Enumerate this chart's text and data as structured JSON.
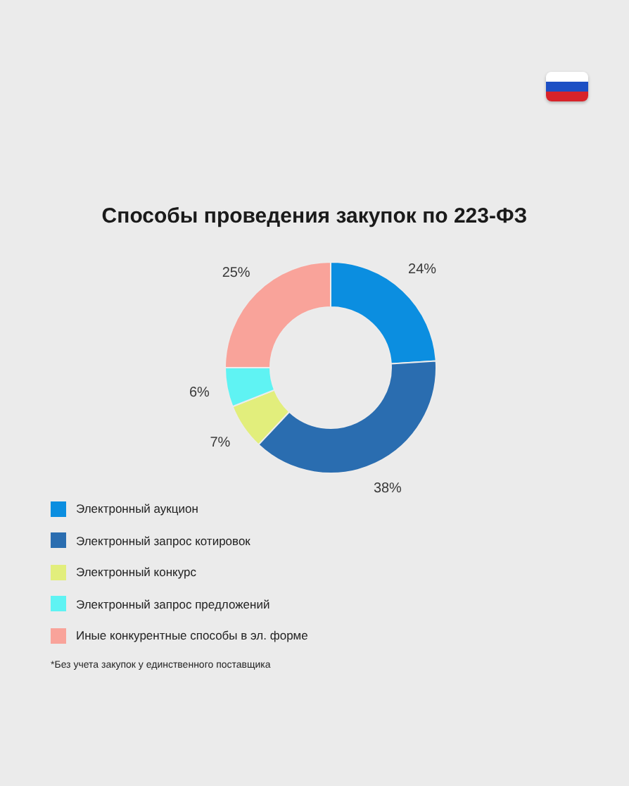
{
  "chart_data": {
    "type": "donut",
    "title": "Способы проведения закупок по 223-ФЗ",
    "categories": [
      "Электронный аукцион",
      "Электронный запрос котировок",
      "Электронный конкурс",
      "Электронный запрос предложений",
      "Иные конкурентные способы в эл. форме"
    ],
    "values": [
      24,
      38,
      7,
      6,
      25
    ],
    "colors": [
      "#0b8ee0",
      "#2a6db0",
      "#e2ee7c",
      "#5ff3f3",
      "#f9a39a"
    ],
    "value_labels": [
      "24%",
      "38%",
      "7%",
      "6%",
      "25%"
    ],
    "legend": "bottom",
    "annotations": [
      "*Без учета закупок у единственного поставщика"
    ]
  }
}
